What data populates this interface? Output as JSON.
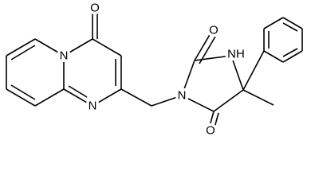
{
  "atoms": [
    {
      "label": "O"
    },
    {
      "label": "N"
    },
    {
      "label": "N"
    },
    {
      "label": "O"
    },
    {
      "label": "NH"
    },
    {
      "label": "N"
    },
    {
      "label": "O"
    }
  ]
}
